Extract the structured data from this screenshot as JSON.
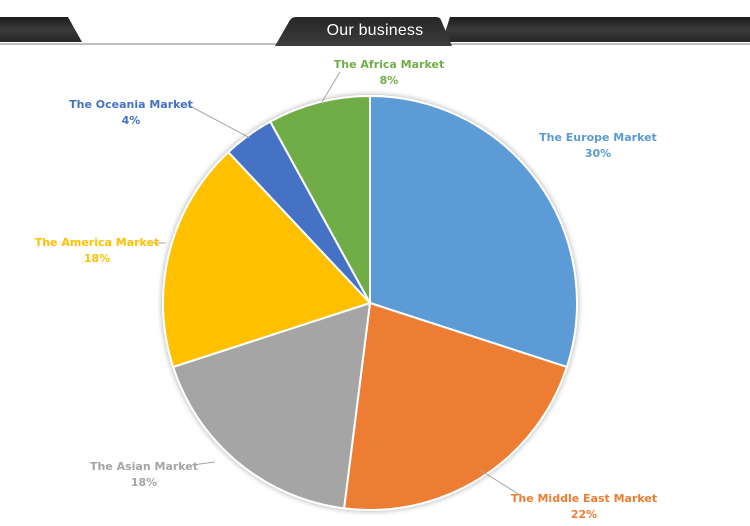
{
  "header": {
    "title": "Our business",
    "bar_color": "#2f2f2f",
    "line_color": "#9a9a9a"
  },
  "chart_data": {
    "type": "pie",
    "title": "",
    "slices": [
      {
        "label": "The Europe Market",
        "value": 30,
        "value_text": "30%",
        "color": "#5b9bd5",
        "label_color": "#5b9bd5"
      },
      {
        "label": "The Middle East Market",
        "value": 22,
        "value_text": "22%",
        "color": "#ed7d31",
        "label_color": "#ed7d31"
      },
      {
        "label": "The Asian Market",
        "value": 18,
        "value_text": "18%",
        "color": "#a5a5a5",
        "label_color": "#a5a5a5"
      },
      {
        "label": "The America Market",
        "value": 18,
        "value_text": "18%",
        "color": "#ffc000",
        "label_color": "#ffc000"
      },
      {
        "label": "The Oceania Market",
        "value": 4,
        "value_text": "4%",
        "color": "#4472c4",
        "label_color": "#4472c4"
      },
      {
        "label": "The Africa Market",
        "value": 8,
        "value_text": "8%",
        "color": "#70ad47",
        "label_color": "#70ad47"
      }
    ],
    "start_angle": "top",
    "direction": "clockwise",
    "legend": "none"
  }
}
